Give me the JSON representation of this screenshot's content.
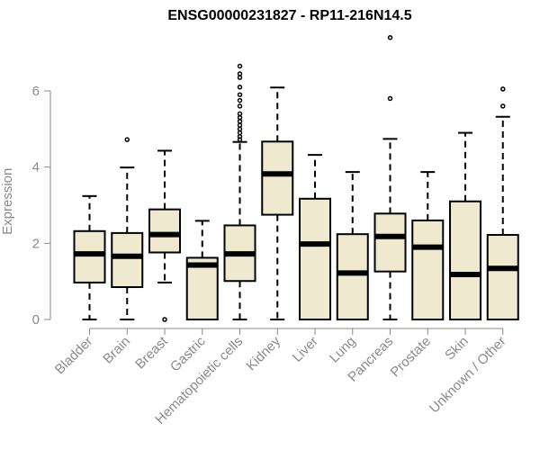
{
  "chart_data": {
    "type": "box",
    "title": "ENSG00000231827 - RP11-216N14.5",
    "xlabel": "",
    "ylabel": "Expression",
    "ylim": [
      0,
      7.4
    ],
    "yticks": [
      0,
      2,
      4,
      6
    ],
    "grid": false,
    "box_fill": "#efe9d0",
    "box_stroke": "#000000",
    "categories": [
      "Bladder",
      "Brain",
      "Breast",
      "Gastric",
      "Hematopoietic cells",
      "Kidney",
      "Liver",
      "Lung",
      "Pancreas",
      "Prostate",
      "Skin",
      "Unknown / Other"
    ],
    "boxes": [
      {
        "min": 0,
        "q1": 0.97,
        "median": 1.72,
        "q3": 2.32,
        "max": 3.24,
        "outliers": []
      },
      {
        "min": 0,
        "q1": 0.85,
        "median": 1.66,
        "q3": 2.27,
        "max": 3.99,
        "outliers": [
          4.72
        ]
      },
      {
        "min": 0.97,
        "q1": 1.76,
        "median": 2.23,
        "q3": 2.89,
        "max": 4.43,
        "outliers": [
          0
        ]
      },
      {
        "min": 0,
        "q1": 0,
        "median": 1.43,
        "q3": 1.62,
        "max": 2.59,
        "outliers": []
      },
      {
        "min": 0,
        "q1": 1.01,
        "median": 1.72,
        "q3": 2.47,
        "max": 4.66,
        "outliers": [
          4.72,
          4.8,
          4.9,
          5.0,
          5.1,
          5.2,
          5.3,
          5.4,
          5.6,
          5.75,
          5.9,
          6.1,
          6.35,
          6.45,
          6.65
        ]
      },
      {
        "min": 0,
        "q1": 2.75,
        "median": 3.82,
        "q3": 4.67,
        "max": 6.09,
        "outliers": []
      },
      {
        "min": 0,
        "q1": 0,
        "median": 1.98,
        "q3": 3.17,
        "max": 4.32,
        "outliers": []
      },
      {
        "min": 0,
        "q1": 0,
        "median": 1.22,
        "q3": 2.24,
        "max": 3.87,
        "outliers": []
      },
      {
        "min": 0,
        "q1": 1.26,
        "median": 2.18,
        "q3": 2.78,
        "max": 4.74,
        "outliers": [
          5.8,
          7.4
        ]
      },
      {
        "min": 0,
        "q1": 0,
        "median": 1.9,
        "q3": 2.6,
        "max": 3.87,
        "outliers": []
      },
      {
        "min": 0,
        "q1": 0,
        "median": 1.18,
        "q3": 3.1,
        "max": 4.9,
        "outliers": []
      },
      {
        "min": 0,
        "q1": 0,
        "median": 1.34,
        "q3": 2.22,
        "max": 5.32,
        "outliers": [
          5.6,
          6.05
        ]
      }
    ]
  }
}
